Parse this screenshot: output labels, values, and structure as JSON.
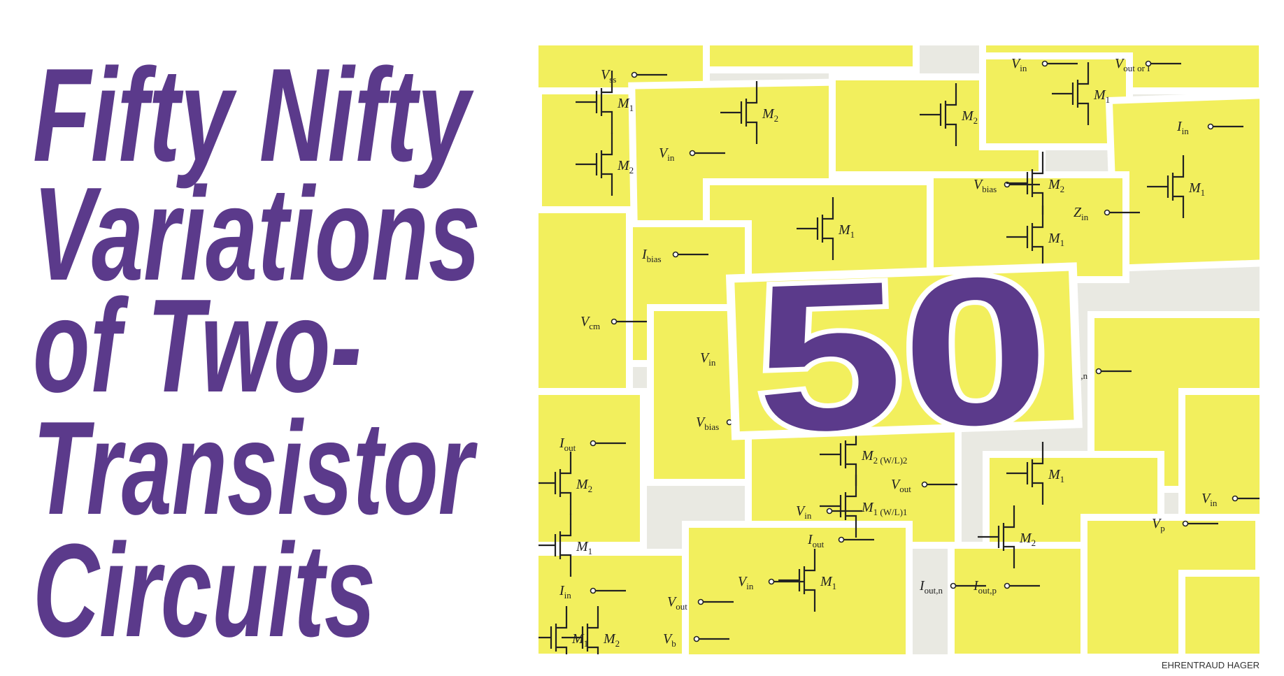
{
  "title_lines": [
    "Fifty Nifty",
    "Variations",
    "of Two-",
    "Transistor",
    "Circuits"
  ],
  "badge": "50",
  "credit": "EHRENTRAUD HAGER",
  "circuit_labels": [
    {
      "main": "V",
      "sub": "ss"
    },
    {
      "main": "M",
      "sub": "1"
    },
    {
      "main": "M",
      "sub": "2"
    },
    {
      "main": "M",
      "sub": "2"
    },
    {
      "main": "V",
      "sub": "in"
    },
    {
      "main": "M",
      "sub": "2"
    },
    {
      "main": "V",
      "sub": "in"
    },
    {
      "main": "V",
      "sub": "out or I"
    },
    {
      "main": "M",
      "sub": "1"
    },
    {
      "main": "I",
      "sub": "in"
    },
    {
      "main": "M",
      "sub": "1"
    },
    {
      "main": "V",
      "sub": "bias"
    },
    {
      "main": "M",
      "sub": "2"
    },
    {
      "main": "Z",
      "sub": "in"
    },
    {
      "main": "M",
      "sub": "1"
    },
    {
      "main": "M",
      "sub": "1"
    },
    {
      "main": "I",
      "sub": "bias"
    },
    {
      "main": "V",
      "sub": "cm"
    },
    {
      "main": "V",
      "sub": "in"
    },
    {
      "main": "V",
      "sub": "in,n"
    },
    {
      "main": "V",
      "sub": "bias"
    },
    {
      "main": "M",
      "sub": "2 (W/L)2"
    },
    {
      "main": "V",
      "sub": "out"
    },
    {
      "main": "V",
      "sub": "in"
    },
    {
      "main": "M",
      "sub": "1 (W/L)1"
    },
    {
      "main": "I",
      "sub": "out"
    },
    {
      "main": "M",
      "sub": "2"
    },
    {
      "main": "M",
      "sub": "1"
    },
    {
      "main": "I",
      "sub": "in"
    },
    {
      "main": "M",
      "sub": "1"
    },
    {
      "main": "M",
      "sub": "2"
    },
    {
      "main": "V",
      "sub": "p"
    },
    {
      "main": "V",
      "sub": "in"
    },
    {
      "main": "I",
      "sub": "out"
    },
    {
      "main": "V",
      "sub": "in"
    },
    {
      "main": "M",
      "sub": "1"
    },
    {
      "main": "I",
      "sub": "out,n"
    },
    {
      "main": "I",
      "sub": "out,p"
    },
    {
      "main": "V",
      "sub": "out"
    },
    {
      "main": "M",
      "sub": "1"
    },
    {
      "main": "M",
      "sub": "2"
    },
    {
      "main": "V",
      "sub": "b"
    }
  ]
}
